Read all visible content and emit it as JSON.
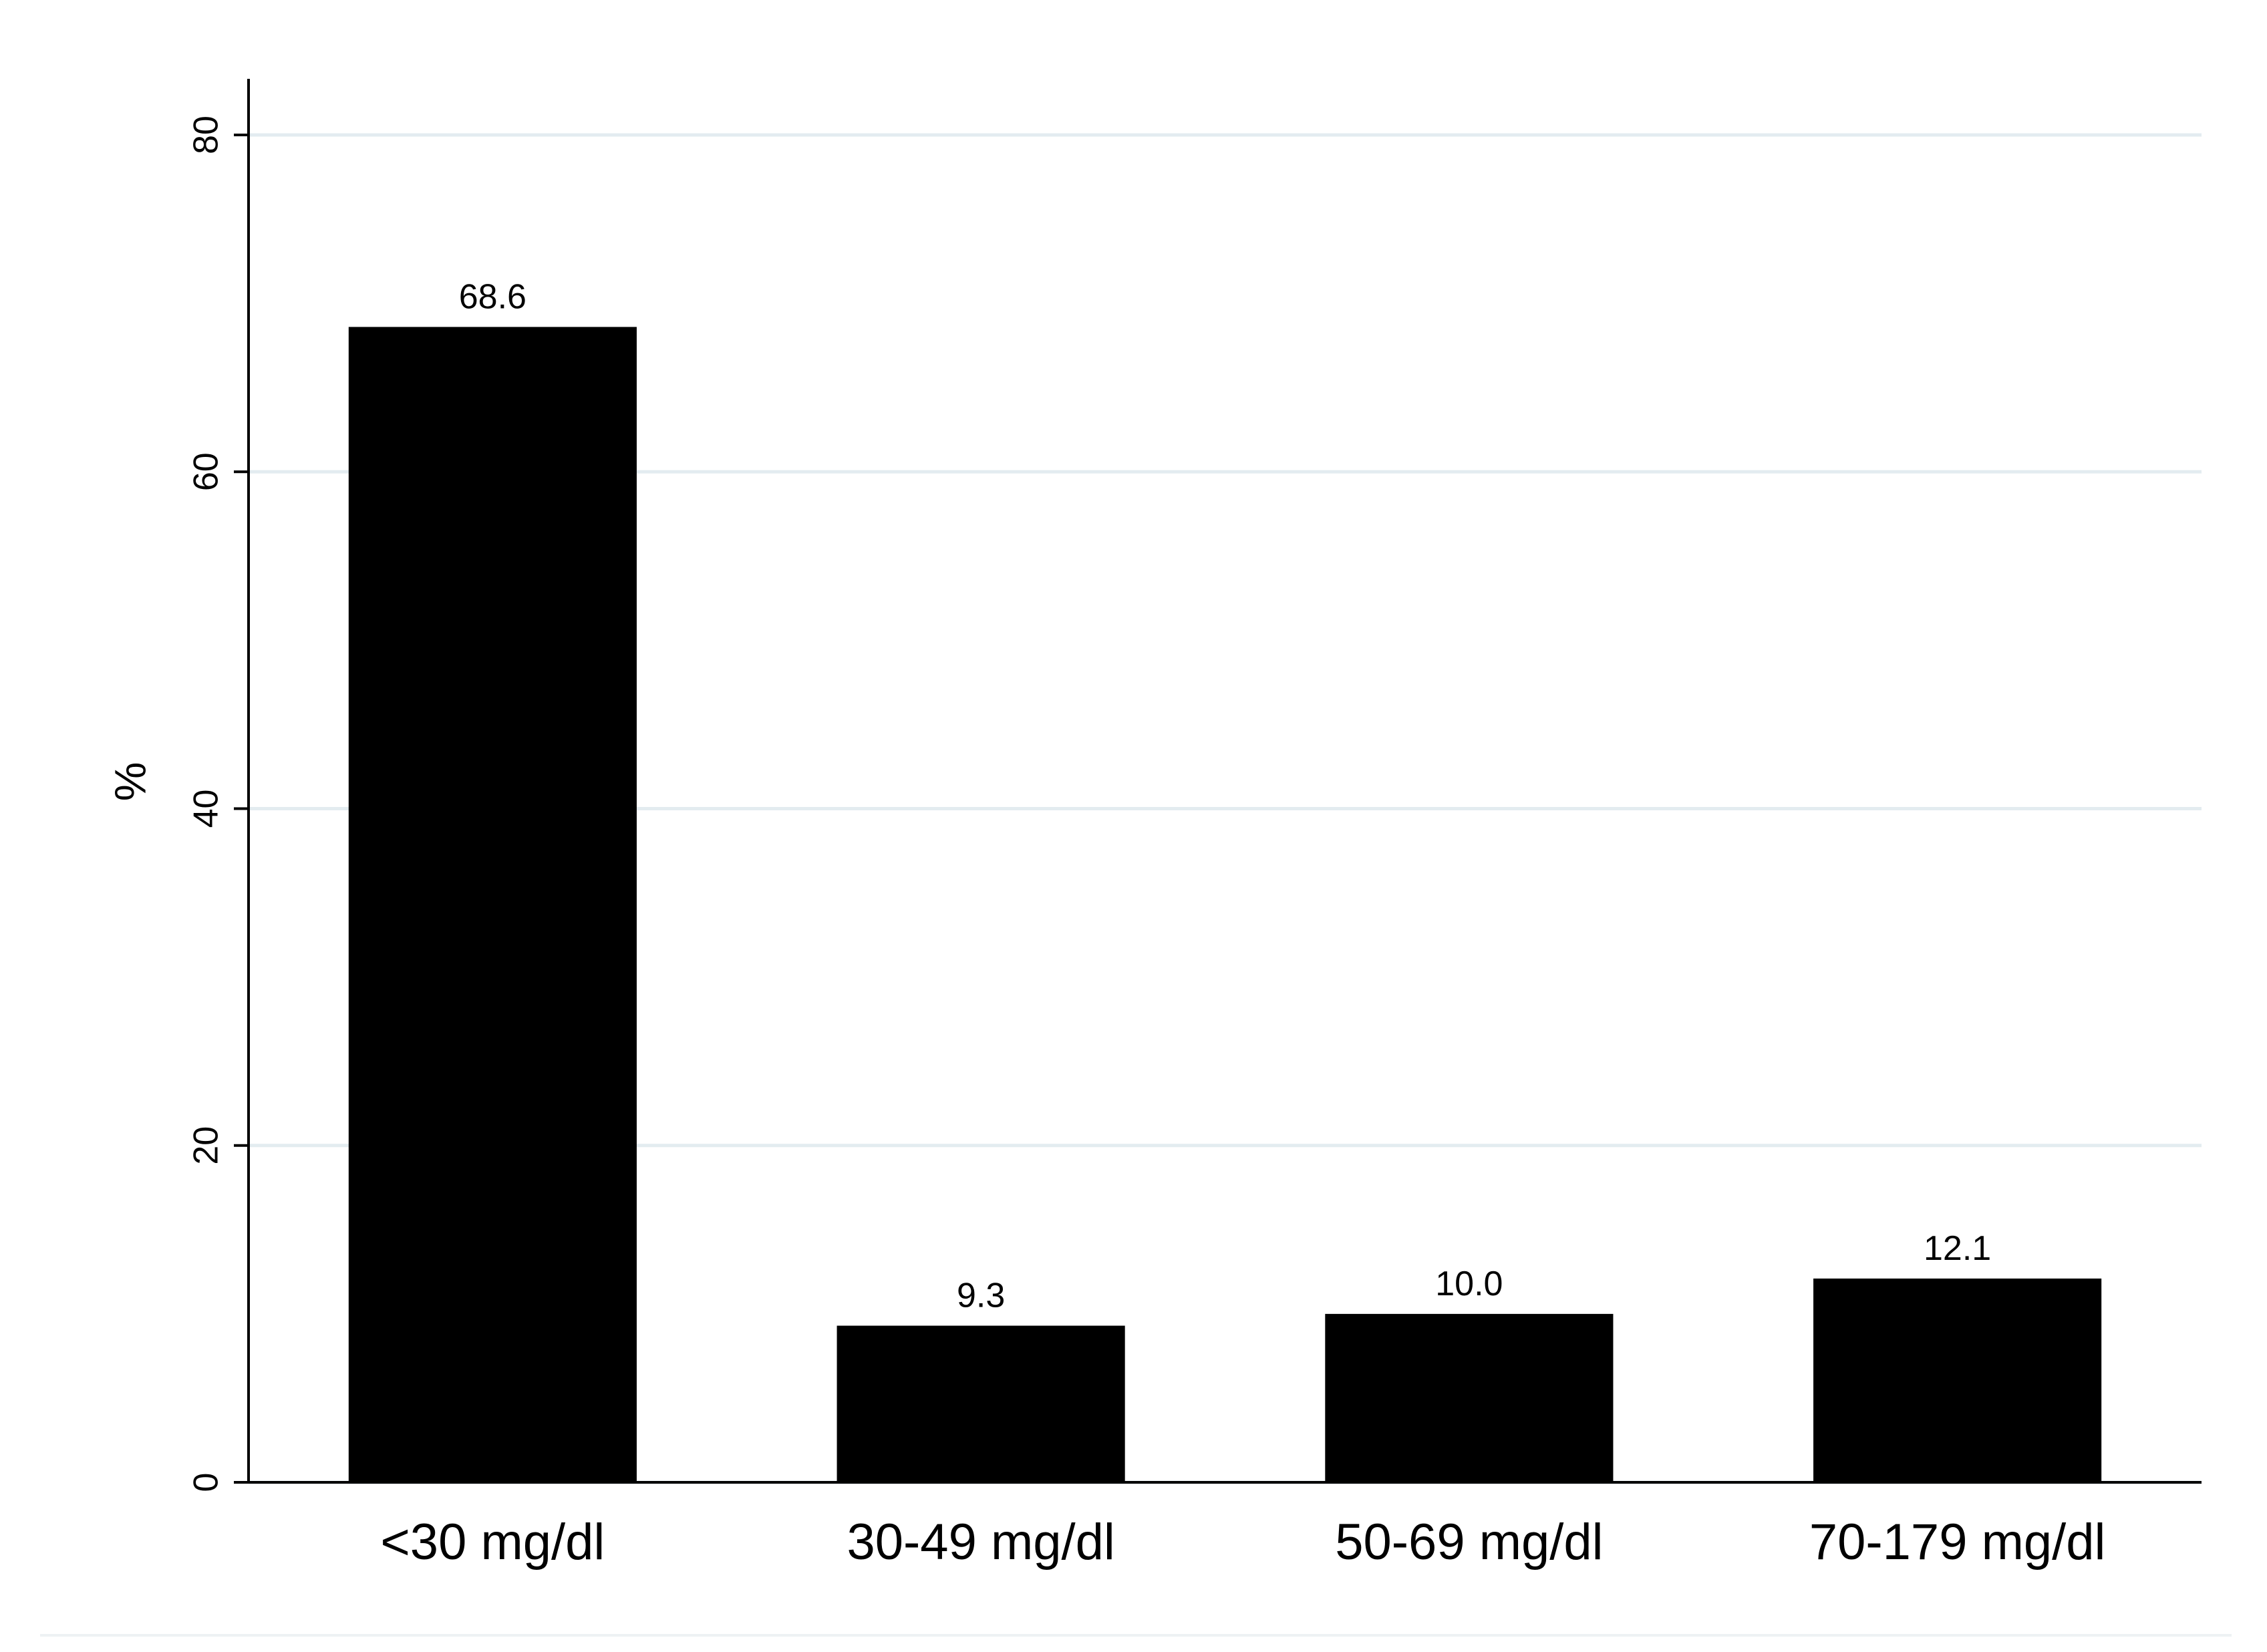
{
  "chart_data": {
    "type": "bar",
    "y_label": "%",
    "categories": [
      "<30 mg/dl",
      "30-49 mg/dl",
      "50-69 mg/dl",
      "70-179 mg/dl"
    ],
    "values": [
      68.6,
      9.3,
      10.0,
      12.1
    ],
    "value_labels": [
      "68.6",
      "9.3",
      "10.0",
      "12.1"
    ],
    "color": "#000000",
    "ylim": [
      0,
      83
    ],
    "yticks": [
      0,
      20,
      40,
      60,
      80
    ],
    "grid": true
  }
}
